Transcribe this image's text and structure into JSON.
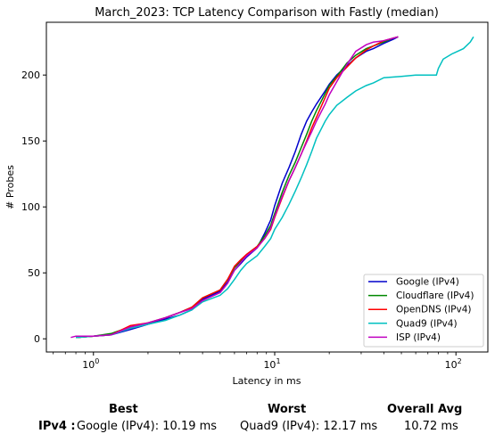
{
  "chart_data": {
    "type": "line",
    "title": "March_2023: TCP Latency Comparison with Fastly (median)",
    "xlabel": "Latency in ms",
    "ylabel": "# Probes",
    "xscale": "log",
    "xlim": [
      0.55,
      150
    ],
    "ylim": [
      -10,
      240
    ],
    "xticks": [
      1,
      10,
      100
    ],
    "xtick_labels": [
      "10^0",
      "10^1",
      "10^2"
    ],
    "yticks": [
      0,
      50,
      100,
      150,
      200
    ],
    "grid": false,
    "legend_position": "lower-right",
    "series": [
      {
        "name": "Google (IPv4)",
        "color": "#0000cc",
        "points": [
          [
            0.8,
            1
          ],
          [
            1.0,
            2
          ],
          [
            1.25,
            3
          ],
          [
            1.6,
            7
          ],
          [
            2.0,
            11
          ],
          [
            2.5,
            15
          ],
          [
            3.0,
            18
          ],
          [
            3.5,
            22
          ],
          [
            4.0,
            30
          ],
          [
            5.0,
            36
          ],
          [
            5.5,
            43
          ],
          [
            6.0,
            52
          ],
          [
            6.5,
            57
          ],
          [
            7.0,
            62
          ],
          [
            8.0,
            69
          ],
          [
            8.8,
            80
          ],
          [
            9.5,
            90
          ],
          [
            10.0,
            101
          ],
          [
            11.0,
            118
          ],
          [
            12.0,
            130
          ],
          [
            13.0,
            142
          ],
          [
            14.0,
            155
          ],
          [
            15.0,
            165
          ],
          [
            16.0,
            172
          ],
          [
            17.0,
            178
          ],
          [
            19.0,
            188
          ],
          [
            20.0,
            193
          ],
          [
            22.0,
            200
          ],
          [
            25.0,
            207
          ],
          [
            28.0,
            213
          ],
          [
            32.0,
            218
          ],
          [
            35.0,
            220
          ],
          [
            40.0,
            224
          ],
          [
            45.0,
            227
          ],
          [
            48.0,
            229
          ]
        ]
      },
      {
        "name": "Cloudflare (IPv4)",
        "color": "#008800",
        "points": [
          [
            0.8,
            1
          ],
          [
            1.0,
            2
          ],
          [
            1.25,
            4
          ],
          [
            1.6,
            9
          ],
          [
            2.0,
            12
          ],
          [
            2.5,
            16
          ],
          [
            3.0,
            20
          ],
          [
            3.5,
            24
          ],
          [
            4.0,
            31
          ],
          [
            5.0,
            37
          ],
          [
            5.5,
            45
          ],
          [
            6.0,
            54
          ],
          [
            6.5,
            59
          ],
          [
            7.0,
            64
          ],
          [
            8.0,
            70
          ],
          [
            8.8,
            78
          ],
          [
            9.5,
            86
          ],
          [
            10.0,
            95
          ],
          [
            11.0,
            111
          ],
          [
            12.0,
            124
          ],
          [
            13.0,
            134
          ],
          [
            14.0,
            145
          ],
          [
            15.0,
            155
          ],
          [
            16.0,
            165
          ],
          [
            17.0,
            173
          ],
          [
            19.0,
            186
          ],
          [
            20.0,
            192
          ],
          [
            22.0,
            199
          ],
          [
            25.0,
            209
          ],
          [
            28.0,
            215
          ],
          [
            32.0,
            220
          ],
          [
            35.0,
            222
          ],
          [
            40.0,
            225
          ],
          [
            45.0,
            228
          ],
          [
            48.0,
            229
          ]
        ]
      },
      {
        "name": "OpenDNS (IPv4)",
        "color": "#ff0000",
        "points": [
          [
            0.8,
            1
          ],
          [
            1.0,
            2
          ],
          [
            1.25,
            3
          ],
          [
            1.6,
            10
          ],
          [
            2.0,
            12
          ],
          [
            2.5,
            16
          ],
          [
            3.0,
            20
          ],
          [
            3.5,
            24
          ],
          [
            4.0,
            31
          ],
          [
            5.0,
            37
          ],
          [
            5.5,
            45
          ],
          [
            6.0,
            55
          ],
          [
            6.5,
            60
          ],
          [
            7.0,
            64
          ],
          [
            8.0,
            70
          ],
          [
            8.8,
            76
          ],
          [
            9.5,
            83
          ],
          [
            10.0,
            92
          ],
          [
            11.0,
            107
          ],
          [
            12.0,
            120
          ],
          [
            13.0,
            130
          ],
          [
            14.0,
            140
          ],
          [
            15.0,
            150
          ],
          [
            16.0,
            160
          ],
          [
            17.0,
            168
          ],
          [
            19.0,
            183
          ],
          [
            20.0,
            190
          ],
          [
            22.0,
            198
          ],
          [
            25.0,
            206
          ],
          [
            28.0,
            213
          ],
          [
            32.0,
            219
          ],
          [
            35.0,
            222
          ],
          [
            40.0,
            226
          ],
          [
            45.0,
            228
          ],
          [
            48.0,
            229
          ]
        ]
      },
      {
        "name": "Quad9 (IPv4)",
        "color": "#00c0c0",
        "points": [
          [
            0.8,
            1
          ],
          [
            1.0,
            2
          ],
          [
            1.25,
            3
          ],
          [
            1.6,
            8
          ],
          [
            2.0,
            11
          ],
          [
            2.5,
            14
          ],
          [
            3.0,
            18
          ],
          [
            3.5,
            22
          ],
          [
            4.0,
            28
          ],
          [
            5.0,
            33
          ],
          [
            5.5,
            38
          ],
          [
            6.0,
            45
          ],
          [
            6.5,
            52
          ],
          [
            7.0,
            57
          ],
          [
            8.0,
            63
          ],
          [
            8.8,
            70
          ],
          [
            9.5,
            76
          ],
          [
            10.0,
            83
          ],
          [
            11.0,
            92
          ],
          [
            12.0,
            102
          ],
          [
            13.0,
            112
          ],
          [
            14.0,
            122
          ],
          [
            15.0,
            132
          ],
          [
            16.0,
            142
          ],
          [
            17.0,
            152
          ],
          [
            19.0,
            165
          ],
          [
            20.0,
            170
          ],
          [
            22.0,
            177
          ],
          [
            25.0,
            183
          ],
          [
            28.0,
            188
          ],
          [
            32.0,
            192
          ],
          [
            35.0,
            194
          ],
          [
            40.0,
            198
          ],
          [
            50.0,
            199
          ],
          [
            60.0,
            200
          ],
          [
            78.0,
            200
          ],
          [
            80.0,
            205
          ],
          [
            85.0,
            212
          ],
          [
            95.0,
            216
          ],
          [
            110.0,
            220
          ],
          [
            120.0,
            225
          ],
          [
            125.0,
            229
          ]
        ]
      },
      {
        "name": "ISP (IPv4)",
        "color": "#c000c0",
        "points": [
          [
            0.75,
            1
          ],
          [
            0.8,
            2
          ],
          [
            1.0,
            2
          ],
          [
            1.25,
            3
          ],
          [
            1.6,
            9
          ],
          [
            2.0,
            12
          ],
          [
            2.5,
            16
          ],
          [
            3.0,
            20
          ],
          [
            3.5,
            23
          ],
          [
            4.0,
            29
          ],
          [
            5.0,
            35
          ],
          [
            5.5,
            42
          ],
          [
            6.0,
            52
          ],
          [
            6.5,
            58
          ],
          [
            7.0,
            63
          ],
          [
            8.0,
            69
          ],
          [
            8.8,
            76
          ],
          [
            9.5,
            84
          ],
          [
            10.0,
            93
          ],
          [
            11.0,
            108
          ],
          [
            12.0,
            120
          ],
          [
            13.0,
            130
          ],
          [
            14.0,
            140
          ],
          [
            15.0,
            149
          ],
          [
            16.0,
            157
          ],
          [
            17.0,
            165
          ],
          [
            19.0,
            178
          ],
          [
            20.0,
            185
          ],
          [
            22.0,
            195
          ],
          [
            25.0,
            208
          ],
          [
            28.0,
            218
          ],
          [
            32.0,
            223
          ],
          [
            35.0,
            225
          ],
          [
            40.0,
            226
          ],
          [
            45.0,
            228
          ],
          [
            48.0,
            229
          ]
        ]
      }
    ]
  },
  "summary": {
    "headers": [
      "Best",
      "Worst",
      "Overall Avg"
    ],
    "row_label": "IPv4 :",
    "best": "Google (IPv4): 10.19 ms",
    "worst": "Quad9 (IPv4): 12.17 ms",
    "avg": "10.72 ms"
  }
}
